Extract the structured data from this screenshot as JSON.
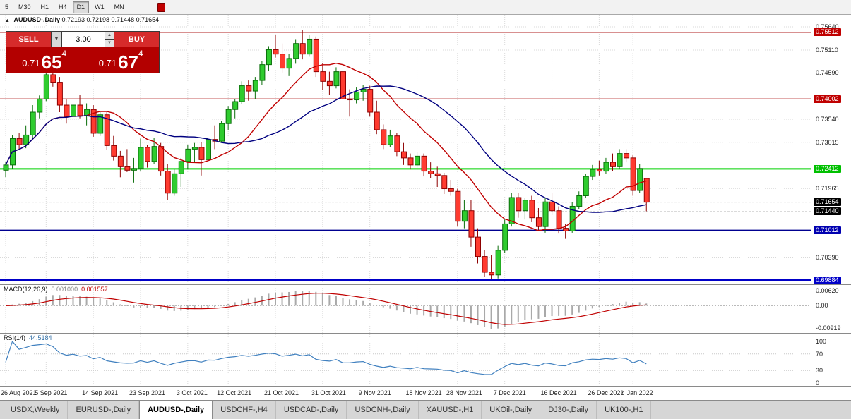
{
  "toolbar": {
    "timeframes": [
      "5",
      "M30",
      "H1",
      "H4",
      "D1",
      "W1",
      "MN"
    ],
    "active_timeframe": "D1"
  },
  "chart_header": {
    "symbol_title": "AUDUSD-,Daily",
    "ohlc": "0.72193 0.72198 0.71448 0.71654"
  },
  "trade_panel": {
    "sell_label": "SELL",
    "buy_label": "BUY",
    "volume": "3.00",
    "sell_price": {
      "base": "0.71",
      "big": "65",
      "sup": "4"
    },
    "buy_price": {
      "base": "0.71",
      "big": "67",
      "sup": "4"
    }
  },
  "colors": {
    "candle_up_fill": "#2fcc2f",
    "candle_up_stroke": "#0a6e0a",
    "candle_down_fill": "#ff3b30",
    "candle_down_stroke": "#8e0000",
    "ma_fast": "#c00000",
    "ma_slow": "#000080",
    "macd_hist": "#a9a9a9",
    "macd_signal": "#c00000",
    "rsi_line": "#4080bf",
    "grid": "#d9d9d9"
  },
  "chart_data": {
    "type": "candlestick",
    "title": "AUDUSD-,Daily",
    "current_bar": {
      "open": 0.72193,
      "high": 0.72198,
      "low": 0.71448,
      "close": 0.71654
    },
    "y_axis": {
      "anchor_top_price": 0.7564,
      "anchor_bottom_price": 0.69884,
      "plain_ticks": [
        {
          "label": "0.75640",
          "price": 0.7564
        },
        {
          "label": "0.75110",
          "price": 0.7511
        },
        {
          "label": "0.74590",
          "price": 0.7459
        },
        {
          "label": "0.73540",
          "price": 0.7354
        },
        {
          "label": "0.73015",
          "price": 0.73015
        },
        {
          "label": "0.71965",
          "price": 0.71965
        },
        {
          "label": "0.70390",
          "price": 0.7039
        }
      ],
      "special_ticks": [
        {
          "label": "0.75512",
          "price": 0.75512,
          "bg": "#c00000"
        },
        {
          "label": "0.74002",
          "price": 0.74002,
          "bg": "#c00000"
        },
        {
          "label": "0.72412",
          "price": 0.72412,
          "bg": "#00c000"
        },
        {
          "label": "0.71654",
          "price": 0.71654,
          "bg": "#000000"
        },
        {
          "label": "0.71440",
          "price": 0.7144,
          "bg": "#000000"
        },
        {
          "label": "0.71012",
          "price": 0.71012,
          "bg": "#0000b0"
        },
        {
          "label": "0.69884",
          "price": 0.69884,
          "bg": "#0000c8"
        }
      ]
    },
    "levels": [
      {
        "price": 0.75512,
        "color": "#b22222",
        "width": 1
      },
      {
        "price": 0.74002,
        "color": "#b22222",
        "width": 1
      },
      {
        "price": 0.72412,
        "color": "#00d000",
        "width": 2
      },
      {
        "price": 0.71012,
        "color": "#000090",
        "width": 2
      },
      {
        "price": 0.69884,
        "color": "#0000c8",
        "width": 3
      }
    ],
    "dashed_price_lines": [
      0.71654,
      0.7144
    ],
    "date_labels": [
      {
        "index": 0,
        "label": "26 Aug 2021"
      },
      {
        "index": 6,
        "label": "5 Sep 2021"
      },
      {
        "index": 13,
        "label": "14 Sep 2021"
      },
      {
        "index": 20,
        "label": "23 Sep 2021"
      },
      {
        "index": 27,
        "label": "3 Oct 2021"
      },
      {
        "index": 33,
        "label": "12 Oct 2021"
      },
      {
        "index": 40,
        "label": "21 Oct 2021"
      },
      {
        "index": 47,
        "label": "31 Oct 2021"
      },
      {
        "index": 54,
        "label": "9 Nov 2021"
      },
      {
        "index": 61,
        "label": "18 Nov 2021"
      },
      {
        "index": 67,
        "label": "28 Nov 2021"
      },
      {
        "index": 74,
        "label": "7 Dec 2021"
      },
      {
        "index": 81,
        "label": "16 Dec 2021"
      },
      {
        "index": 88,
        "label": "26 Dec 2021"
      },
      {
        "index": 93,
        "label": "4 Jan 2022"
      }
    ],
    "candles": [
      [
        0.7238,
        0.7256,
        0.7222,
        0.725
      ],
      [
        0.725,
        0.7318,
        0.7242,
        0.731
      ],
      [
        0.731,
        0.7323,
        0.7286,
        0.7296
      ],
      [
        0.7296,
        0.734,
        0.7288,
        0.7318
      ],
      [
        0.7318,
        0.7386,
        0.731,
        0.737
      ],
      [
        0.737,
        0.7408,
        0.7356,
        0.74
      ],
      [
        0.74,
        0.7478,
        0.7395,
        0.7455
      ],
      [
        0.7455,
        0.7468,
        0.7428,
        0.7438
      ],
      [
        0.7438,
        0.745,
        0.737,
        0.7386
      ],
      [
        0.7386,
        0.74,
        0.7344,
        0.736
      ],
      [
        0.736,
        0.7396,
        0.7354,
        0.7386
      ],
      [
        0.7386,
        0.741,
        0.7356,
        0.7362
      ],
      [
        0.7362,
        0.739,
        0.734,
        0.7376
      ],
      [
        0.7376,
        0.7386,
        0.7314,
        0.7322
      ],
      [
        0.7322,
        0.737,
        0.7316,
        0.7364
      ],
      [
        0.7364,
        0.737,
        0.7284,
        0.7294
      ],
      [
        0.7294,
        0.7316,
        0.726,
        0.727
      ],
      [
        0.727,
        0.7282,
        0.7222,
        0.7246
      ],
      [
        0.7246,
        0.7286,
        0.7234,
        0.7238
      ],
      [
        0.7238,
        0.7266,
        0.721,
        0.7242
      ],
      [
        0.7242,
        0.731,
        0.7236,
        0.729
      ],
      [
        0.729,
        0.7296,
        0.7244,
        0.7258
      ],
      [
        0.7258,
        0.7312,
        0.7252,
        0.7292
      ],
      [
        0.7292,
        0.73,
        0.7226,
        0.7236
      ],
      [
        0.7236,
        0.7252,
        0.717,
        0.7186
      ],
      [
        0.7186,
        0.724,
        0.718,
        0.723
      ],
      [
        0.723,
        0.7266,
        0.72,
        0.7258
      ],
      [
        0.7258,
        0.7296,
        0.724,
        0.7286
      ],
      [
        0.7286,
        0.73,
        0.7256,
        0.729
      ],
      [
        0.729,
        0.7302,
        0.7226,
        0.7262
      ],
      [
        0.7262,
        0.7314,
        0.7256,
        0.7308
      ],
      [
        0.7308,
        0.734,
        0.7286,
        0.7304
      ],
      [
        0.7304,
        0.735,
        0.73,
        0.7344
      ],
      [
        0.7344,
        0.7384,
        0.733,
        0.7376
      ],
      [
        0.7376,
        0.74,
        0.7356,
        0.7394
      ],
      [
        0.7394,
        0.744,
        0.7388,
        0.743
      ],
      [
        0.743,
        0.7442,
        0.7396,
        0.7418
      ],
      [
        0.7418,
        0.745,
        0.74,
        0.7442
      ],
      [
        0.7442,
        0.7486,
        0.7432,
        0.7478
      ],
      [
        0.7478,
        0.752,
        0.7464,
        0.7512
      ],
      [
        0.7512,
        0.7546,
        0.7494,
        0.7502
      ],
      [
        0.7502,
        0.7526,
        0.746,
        0.747
      ],
      [
        0.747,
        0.7502,
        0.7452,
        0.7492
      ],
      [
        0.7492,
        0.7536,
        0.748,
        0.7526
      ],
      [
        0.7526,
        0.7556,
        0.749,
        0.7502
      ],
      [
        0.7502,
        0.7546,
        0.7496,
        0.7536
      ],
      [
        0.7536,
        0.7542,
        0.745,
        0.7462
      ],
      [
        0.7462,
        0.7482,
        0.742,
        0.744
      ],
      [
        0.744,
        0.7462,
        0.741,
        0.743
      ],
      [
        0.743,
        0.7472,
        0.7424,
        0.7462
      ],
      [
        0.7462,
        0.7466,
        0.7386,
        0.74
      ],
      [
        0.74,
        0.7422,
        0.736,
        0.7398
      ],
      [
        0.7398,
        0.7426,
        0.739,
        0.7416
      ],
      [
        0.7416,
        0.7432,
        0.7396,
        0.7422
      ],
      [
        0.7422,
        0.743,
        0.736,
        0.737
      ],
      [
        0.737,
        0.7396,
        0.732,
        0.733
      ],
      [
        0.733,
        0.7342,
        0.7286,
        0.7296
      ],
      [
        0.7296,
        0.733,
        0.729,
        0.7316
      ],
      [
        0.7316,
        0.7322,
        0.727,
        0.728
      ],
      [
        0.728,
        0.73,
        0.725,
        0.7266
      ],
      [
        0.7266,
        0.7276,
        0.724,
        0.725
      ],
      [
        0.725,
        0.728,
        0.7244,
        0.727
      ],
      [
        0.727,
        0.7276,
        0.7224,
        0.7236
      ],
      [
        0.7236,
        0.7256,
        0.722,
        0.723
      ],
      [
        0.723,
        0.7246,
        0.72,
        0.7226
      ],
      [
        0.7226,
        0.7232,
        0.7184,
        0.7196
      ],
      [
        0.7196,
        0.7216,
        0.718,
        0.719
      ],
      [
        0.719,
        0.7196,
        0.711,
        0.7122
      ],
      [
        0.7122,
        0.717,
        0.7106,
        0.7146
      ],
      [
        0.7146,
        0.717,
        0.7064,
        0.7086
      ],
      [
        0.7086,
        0.7106,
        0.7026,
        0.7042
      ],
      [
        0.7042,
        0.7056,
        0.6996,
        0.7006
      ],
      [
        0.7006,
        0.7046,
        0.699,
        0.7
      ],
      [
        0.7,
        0.7066,
        0.6992,
        0.7056
      ],
      [
        0.7056,
        0.7126,
        0.705,
        0.7116
      ],
      [
        0.7116,
        0.7186,
        0.711,
        0.7176
      ],
      [
        0.7176,
        0.7186,
        0.713,
        0.7146
      ],
      [
        0.7146,
        0.7176,
        0.7126,
        0.717
      ],
      [
        0.717,
        0.718,
        0.712,
        0.713
      ],
      [
        0.713,
        0.7152,
        0.71,
        0.711
      ],
      [
        0.711,
        0.7176,
        0.7096,
        0.7166
      ],
      [
        0.7166,
        0.7186,
        0.7136,
        0.7146
      ],
      [
        0.7146,
        0.7156,
        0.7094,
        0.7106
      ],
      [
        0.7106,
        0.7116,
        0.7082,
        0.71
      ],
      [
        0.71,
        0.7166,
        0.7096,
        0.7156
      ],
      [
        0.7156,
        0.719,
        0.715,
        0.718
      ],
      [
        0.718,
        0.723,
        0.7176,
        0.7224
      ],
      [
        0.7224,
        0.725,
        0.7216,
        0.724
      ],
      [
        0.724,
        0.726,
        0.7226,
        0.7236
      ],
      [
        0.7236,
        0.7266,
        0.723,
        0.7256
      ],
      [
        0.7256,
        0.7276,
        0.7236,
        0.7246
      ],
      [
        0.7246,
        0.7286,
        0.724,
        0.7276
      ],
      [
        0.7276,
        0.7286,
        0.7256,
        0.7266
      ],
      [
        0.7266,
        0.7272,
        0.718,
        0.7192
      ],
      [
        0.7192,
        0.7252,
        0.7186,
        0.7242
      ],
      [
        0.72193,
        0.72198,
        0.71448,
        0.71654
      ]
    ],
    "indicators": {
      "ma_fast_period": 13,
      "ma_slow_period": 26,
      "macd": {
        "fast": 12,
        "slow": 26,
        "signal": 9
      },
      "rsi_period": 14
    }
  },
  "macd_panel": {
    "label": "MACD(12,26,9)",
    "value1": "0.001000",
    "value2": "0.001557",
    "axis_top": "0.00620",
    "axis_zero": "0.00",
    "axis_bottom": "-0.00919"
  },
  "rsi_panel": {
    "label": "RSI(14)",
    "value": "44.5184",
    "axis": [
      "100",
      "70",
      "30",
      "0"
    ],
    "levels": [
      70,
      30
    ]
  },
  "tabs": [
    {
      "label": "USDX,Weekly",
      "active": false
    },
    {
      "label": "EURUSD-,Daily",
      "active": false
    },
    {
      "label": "AUDUSD-,Daily",
      "active": true
    },
    {
      "label": "USDCHF-,H4",
      "active": false
    },
    {
      "label": "USDCAD-,Daily",
      "active": false
    },
    {
      "label": "USDCNH-,Daily",
      "active": false
    },
    {
      "label": "XAUUSD-,H1",
      "active": false
    },
    {
      "label": "UKOil-,Daily",
      "active": false
    },
    {
      "label": "DJ30-,Daily",
      "active": false
    },
    {
      "label": "UK100-,H1",
      "active": false
    }
  ]
}
